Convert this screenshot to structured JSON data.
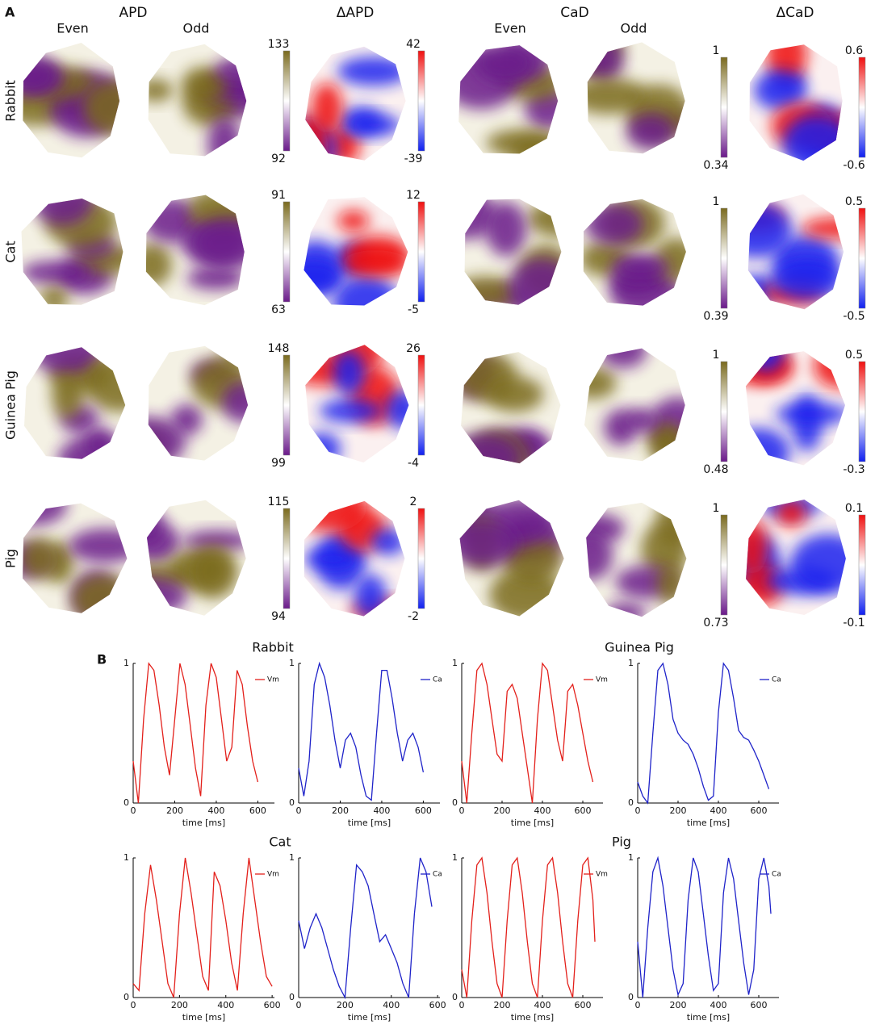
{
  "panel_a": {
    "label": "A",
    "groups": [
      {
        "title": "APD",
        "sub": [
          "Even",
          "Odd"
        ]
      },
      {
        "title": "ΔAPD"
      },
      {
        "title": "CaD",
        "sub": [
          "Even",
          "Odd"
        ]
      },
      {
        "title": "ΔCaD"
      }
    ],
    "rows": [
      {
        "name": "Rabbit",
        "bars": [
          [
            133,
            92
          ],
          [
            42,
            -39
          ],
          [
            1,
            0.34
          ],
          [
            0.6,
            -0.6
          ]
        ]
      },
      {
        "name": "Cat",
        "bars": [
          [
            91,
            63
          ],
          [
            12,
            -5
          ],
          [
            1,
            0.39
          ],
          [
            0.5,
            -0.5
          ]
        ]
      },
      {
        "name": "Guinea Pig",
        "bars": [
          [
            148,
            99
          ],
          [
            26,
            -4
          ],
          [
            1,
            0.48
          ],
          [
            0.5,
            -0.3
          ]
        ]
      },
      {
        "name": "Pig",
        "bars": [
          [
            115,
            94
          ],
          [
            2,
            -2
          ],
          [
            1,
            0.73
          ],
          [
            0.1,
            -0.1
          ]
        ]
      }
    ]
  },
  "panel_b": {
    "label": "B",
    "groups": [
      "Rabbit",
      "Guinea Pig",
      "Cat",
      "Pig"
    ]
  },
  "chart_data": [
    {
      "type": "line",
      "x_label": "time [ms]",
      "xlim": [
        0,
        680
      ],
      "xticks": [
        0,
        200,
        400,
        600
      ],
      "ylim": [
        0,
        1
      ],
      "yticks": [
        0,
        1
      ],
      "x": [
        0,
        25,
        50,
        75,
        100,
        125,
        150,
        175,
        200,
        225,
        250,
        275,
        300,
        325,
        350,
        375,
        400,
        425,
        450,
        475,
        500,
        525,
        550,
        575,
        600
      ],
      "series": [
        {
          "name": "Vm",
          "color": "#e3201b",
          "values": [
            0.3,
            0.0,
            0.6,
            1.0,
            0.95,
            0.7,
            0.4,
            0.2,
            0.6,
            1.0,
            0.85,
            0.55,
            0.25,
            0.05,
            0.7,
            1.0,
            0.9,
            0.6,
            0.3,
            0.4,
            0.95,
            0.85,
            0.55,
            0.3,
            0.15
          ]
        }
      ]
    },
    {
      "type": "line",
      "x_label": "time [ms]",
      "xlim": [
        0,
        680
      ],
      "xticks": [
        0,
        200,
        400,
        600
      ],
      "ylim": [
        0,
        1
      ],
      "yticks": [
        0,
        1
      ],
      "x": [
        0,
        25,
        50,
        75,
        100,
        125,
        150,
        175,
        200,
        225,
        250,
        275,
        300,
        325,
        350,
        375,
        400,
        425,
        450,
        475,
        500,
        525,
        550,
        575,
        600
      ],
      "series": [
        {
          "name": "Ca",
          "color": "#1f23c9",
          "values": [
            0.25,
            0.05,
            0.3,
            0.85,
            1.0,
            0.9,
            0.7,
            0.45,
            0.25,
            0.45,
            0.5,
            0.4,
            0.2,
            0.05,
            0.02,
            0.5,
            0.95,
            0.95,
            0.75,
            0.5,
            0.3,
            0.45,
            0.5,
            0.4,
            0.22
          ]
        }
      ]
    },
    {
      "type": "line",
      "x_label": "time [ms]",
      "xlim": [
        0,
        700
      ],
      "xticks": [
        0,
        200,
        400,
        600
      ],
      "ylim": [
        0,
        1
      ],
      "yticks": [
        0,
        1
      ],
      "x": [
        0,
        25,
        50,
        75,
        100,
        125,
        150,
        175,
        200,
        225,
        250,
        275,
        300,
        325,
        350,
        375,
        400,
        425,
        450,
        475,
        500,
        525,
        550,
        575,
        600,
        625,
        650
      ],
      "series": [
        {
          "name": "Vm",
          "color": "#e3201b",
          "values": [
            0.3,
            0.0,
            0.5,
            0.95,
            1.0,
            0.85,
            0.6,
            0.35,
            0.3,
            0.8,
            0.85,
            0.75,
            0.5,
            0.25,
            0.0,
            0.6,
            1.0,
            0.95,
            0.7,
            0.45,
            0.3,
            0.8,
            0.85,
            0.7,
            0.5,
            0.3,
            0.15
          ]
        }
      ]
    },
    {
      "type": "line",
      "x_label": "time [ms]",
      "xlim": [
        0,
        700
      ],
      "xticks": [
        0,
        200,
        400,
        600
      ],
      "ylim": [
        0,
        1
      ],
      "yticks": [
        0,
        1
      ],
      "x": [
        0,
        25,
        50,
        75,
        100,
        125,
        150,
        175,
        200,
        225,
        250,
        275,
        300,
        325,
        350,
        375,
        400,
        425,
        450,
        475,
        500,
        525,
        550,
        575,
        600,
        625,
        650
      ],
      "series": [
        {
          "name": "Ca",
          "color": "#1f23c9",
          "values": [
            0.15,
            0.05,
            0.0,
            0.5,
            0.95,
            1.0,
            0.85,
            0.6,
            0.5,
            0.45,
            0.42,
            0.35,
            0.25,
            0.12,
            0.02,
            0.05,
            0.65,
            1.0,
            0.95,
            0.75,
            0.52,
            0.47,
            0.45,
            0.38,
            0.3,
            0.2,
            0.1
          ]
        }
      ]
    },
    {
      "type": "line",
      "x_label": "time [ms]",
      "xlim": [
        0,
        610
      ],
      "xticks": [
        0,
        200,
        400,
        600
      ],
      "ylim": [
        0,
        1
      ],
      "yticks": [
        0,
        1
      ],
      "x": [
        0,
        25,
        50,
        75,
        100,
        125,
        150,
        175,
        200,
        225,
        250,
        275,
        300,
        325,
        350,
        375,
        400,
        425,
        450,
        475,
        500,
        525,
        550,
        575,
        600
      ],
      "series": [
        {
          "name": "Vm",
          "color": "#e3201b",
          "values": [
            0.1,
            0.05,
            0.6,
            0.95,
            0.7,
            0.4,
            0.1,
            0.0,
            0.6,
            1.0,
            0.75,
            0.45,
            0.15,
            0.05,
            0.9,
            0.8,
            0.55,
            0.25,
            0.05,
            0.6,
            1.0,
            0.7,
            0.4,
            0.15,
            0.08
          ]
        }
      ]
    },
    {
      "type": "line",
      "x_label": "time [ms]",
      "xlim": [
        0,
        610
      ],
      "xticks": [
        0,
        200,
        400,
        600
      ],
      "ylim": [
        0,
        1
      ],
      "yticks": [
        0,
        1
      ],
      "x": [
        0,
        25,
        50,
        75,
        100,
        125,
        150,
        175,
        200,
        225,
        250,
        275,
        300,
        325,
        350,
        375,
        400,
        425,
        450,
        475,
        500,
        525,
        550,
        575
      ],
      "series": [
        {
          "name": "Ca",
          "color": "#1f23c9",
          "values": [
            0.55,
            0.35,
            0.5,
            0.6,
            0.5,
            0.35,
            0.2,
            0.08,
            0.0,
            0.5,
            0.95,
            0.9,
            0.8,
            0.6,
            0.4,
            0.45,
            0.35,
            0.25,
            0.1,
            0.0,
            0.6,
            1.0,
            0.9,
            0.65
          ]
        }
      ]
    },
    {
      "type": "line",
      "x_label": "time [ms]",
      "xlim": [
        0,
        700
      ],
      "xticks": [
        0,
        200,
        400,
        600
      ],
      "ylim": [
        0,
        1
      ],
      "yticks": [
        0,
        1
      ],
      "x": [
        0,
        25,
        50,
        75,
        100,
        125,
        150,
        175,
        200,
        225,
        250,
        275,
        300,
        325,
        350,
        375,
        400,
        425,
        450,
        475,
        500,
        525,
        550,
        575,
        600,
        625,
        650,
        660
      ],
      "series": [
        {
          "name": "Vm",
          "color": "#e3201b",
          "values": [
            0.2,
            0.0,
            0.55,
            0.95,
            1.0,
            0.75,
            0.4,
            0.1,
            0.0,
            0.55,
            0.95,
            1.0,
            0.75,
            0.4,
            0.1,
            0.0,
            0.55,
            0.95,
            1.0,
            0.75,
            0.4,
            0.1,
            0.0,
            0.55,
            0.95,
            1.0,
            0.7,
            0.4
          ]
        }
      ]
    },
    {
      "type": "line",
      "x_label": "time [ms]",
      "xlim": [
        0,
        700
      ],
      "xticks": [
        0,
        200,
        400,
        600
      ],
      "ylim": [
        0,
        1
      ],
      "yticks": [
        0,
        1
      ],
      "x": [
        0,
        25,
        50,
        75,
        100,
        125,
        150,
        175,
        200,
        225,
        250,
        275,
        300,
        325,
        350,
        375,
        400,
        425,
        450,
        475,
        500,
        525,
        550,
        575,
        600,
        625,
        650,
        660
      ],
      "series": [
        {
          "name": "Ca",
          "color": "#1f23c9",
          "values": [
            0.4,
            0.0,
            0.5,
            0.9,
            1.0,
            0.8,
            0.5,
            0.2,
            0.02,
            0.1,
            0.7,
            1.0,
            0.9,
            0.6,
            0.3,
            0.05,
            0.1,
            0.75,
            1.0,
            0.85,
            0.55,
            0.25,
            0.02,
            0.2,
            0.85,
            1.0,
            0.8,
            0.6
          ]
        }
      ]
    }
  ]
}
